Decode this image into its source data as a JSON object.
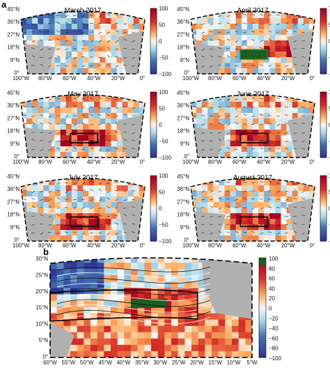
{
  "labels": {
    "a": "a",
    "b": "b"
  },
  "panels_a": [
    {
      "title": "March 2017",
      "highlight_box": false,
      "box_color": "#000000"
    },
    {
      "title": "April 2017",
      "highlight_box": true,
      "box_color": "#2e7d32"
    },
    {
      "title": "May 2017",
      "highlight_box": true,
      "box_color": "#000000"
    },
    {
      "title": "June 2017",
      "highlight_box": true,
      "box_color": "#000000"
    },
    {
      "title": "July 2017",
      "highlight_box": true,
      "box_color": "#000000"
    },
    {
      "title": "August 2017",
      "highlight_box": true,
      "box_color": "#000000"
    }
  ],
  "axes_a": {
    "lat_ticks": [
      "45°N",
      "36°N",
      "27°N",
      "18°N",
      "9°N",
      "0°"
    ],
    "lon_ticks_left": [
      "100°W",
      "80°W",
      "60°W",
      "40°W",
      "20°W",
      "0°"
    ],
    "lon_ticks_right": [
      "100°W",
      "80°W",
      "60°W",
      "40°W",
      "20°W",
      "0°"
    ]
  },
  "colorbar_a": {
    "ticks": [
      "100",
      "50",
      "0",
      "−50",
      "−100"
    ]
  },
  "axes_b": {
    "lat_ticks": [
      "30°N",
      "25°N",
      "20°N",
      "15°N",
      "10°N",
      "5°N",
      "0°"
    ],
    "lon_ticks": [
      "60°W",
      "55°W",
      "50°W",
      "45°W",
      "40°W",
      "35°W",
      "30°W",
      "25°W",
      "20°W",
      "15°W",
      "10°W",
      "5°W"
    ]
  },
  "colorbar_b": {
    "ticks": [
      "100",
      "80",
      "60",
      "40",
      "20",
      "0",
      "−20",
      "−40",
      "−60",
      "−80",
      "−100"
    ]
  },
  "colors": {
    "ocean_red": "#d73027",
    "ocean_orange": "#fc8d59",
    "ocean_blue": "#4575b4",
    "ocean_light": "#f7f7f7",
    "land": "#b0b0b0",
    "dark_green": "#1b5e20"
  }
}
